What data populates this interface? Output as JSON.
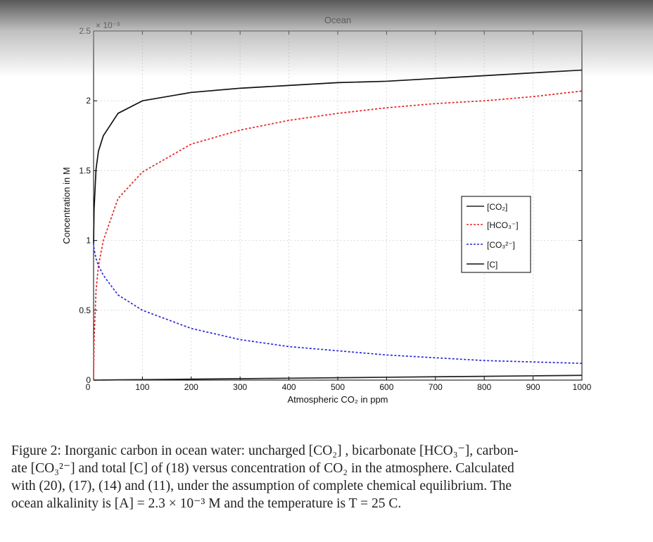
{
  "chart_data": {
    "type": "line",
    "title": "Ocean",
    "xlabel": "Atmospheric CO₂ in ppm",
    "ylabel": "Concentration in M",
    "xlim": [
      0,
      1000
    ],
    "ylim": [
      0,
      0.0025
    ],
    "y_scale_note": "× 10⁻³",
    "x_ticks": [
      0,
      100,
      200,
      300,
      400,
      500,
      600,
      700,
      800,
      900,
      1000
    ],
    "y_ticks": [
      0,
      0.5,
      1,
      1.5,
      2,
      2.5
    ],
    "x_tick_labels": [
      "0",
      "100",
      "200",
      "300",
      "400",
      "500",
      "600",
      "700",
      "800",
      "900",
      "1000"
    ],
    "y_tick_labels": [
      "0",
      "0.5",
      "1",
      "1.5",
      "2",
      "2.5"
    ],
    "grid": true,
    "legend_position": "center-right",
    "series": [
      {
        "name": "[CO₂]",
        "color": "#222222",
        "style": "solid",
        "x": [
          0,
          1,
          5,
          10,
          20,
          50,
          100,
          200,
          300,
          400,
          500,
          600,
          700,
          800,
          900,
          1000
        ],
        "y": [
          0,
          3e-08,
          1.7e-07,
          3.4e-07,
          6.8e-07,
          1.7e-06,
          3.4e-06,
          6.8e-06,
          1.02e-05,
          1.36e-05,
          1.7e-05,
          2.04e-05,
          2.38e-05,
          2.72e-05,
          3.06e-05,
          3.4e-05
        ]
      },
      {
        "name": "[HCO₃⁻]",
        "color": "#e8262a",
        "style": "dashed",
        "x": [
          0,
          1,
          5,
          10,
          20,
          50,
          100,
          200,
          300,
          400,
          500,
          600,
          700,
          800,
          900,
          1000
        ],
        "y": [
          0,
          0.00028,
          0.00064,
          0.00082,
          0.001,
          0.0013,
          0.00149,
          0.00169,
          0.00179,
          0.00186,
          0.00191,
          0.00195,
          0.00198,
          0.002,
          0.00203,
          0.00207
        ]
      },
      {
        "name": "[CO₃²⁻]",
        "color": "#2b2bd9",
        "style": "dashed",
        "x": [
          0,
          1,
          5,
          10,
          20,
          50,
          100,
          200,
          300,
          400,
          500,
          600,
          700,
          800,
          900,
          1000
        ],
        "y": [
          0.00098,
          0.00094,
          0.00087,
          0.00082,
          0.00075,
          0.00061,
          0.0005,
          0.00037,
          0.00029,
          0.00024,
          0.00021,
          0.00018,
          0.00016,
          0.00014,
          0.00013,
          0.00012
        ]
      },
      {
        "name": "[C]",
        "color": "#111111",
        "style": "solid",
        "x": [
          0,
          1,
          5,
          10,
          20,
          50,
          100,
          200,
          300,
          400,
          500,
          600,
          700,
          800,
          900,
          1000
        ],
        "y": [
          0.00098,
          0.00122,
          0.00151,
          0.00164,
          0.00175,
          0.00191,
          0.002,
          0.00206,
          0.00209,
          0.00211,
          0.00213,
          0.00214,
          0.00216,
          0.00218,
          0.0022,
          0.00222
        ]
      }
    ]
  },
  "caption": {
    "lines": [
      "Figure 2: Inorganic carbon in ocean water: uncharged [CO₂] , bicarbonate [HCO₃⁻], carbon-",
      "ate [CO₃²⁻] and total [C] of (18) versus concentration of CO₂ in the atmosphere. Calculated",
      "with (20), (17), (14) and (11), under the assumption of complete chemical equilibrium. The",
      "ocean alkalinity is [A] = 2.3 × 10⁻³ M and the temperature is T = 25 C."
    ]
  }
}
